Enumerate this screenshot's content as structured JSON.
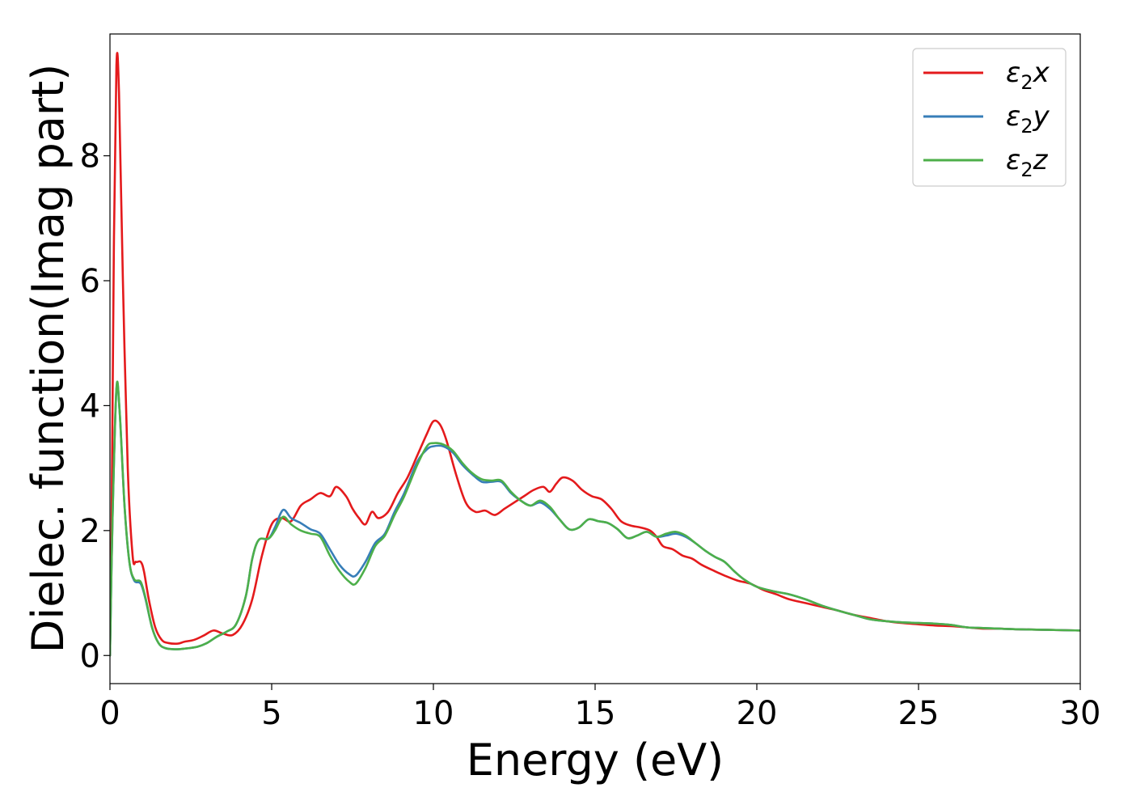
{
  "chart_data": {
    "type": "line",
    "xlabel": "Energy (eV)",
    "ylabel": "Dielec. function(Imag part)",
    "xlim": [
      0,
      30
    ],
    "ylim": [
      -0.45,
      9.95
    ],
    "xticks": [
      0,
      5,
      10,
      15,
      20,
      25,
      30
    ],
    "yticks": [
      0,
      2,
      4,
      6,
      8
    ],
    "grid": false,
    "legend_position": "top-right",
    "series": [
      {
        "name": "ε2x",
        "legend": {
          "base": "ε",
          "sub": "2",
          "tail": "x"
        },
        "color": "#e41a1c",
        "points": [
          [
            0,
            0
          ],
          [
            0.05,
            2.0
          ],
          [
            0.12,
            6.5
          ],
          [
            0.2,
            9.45
          ],
          [
            0.28,
            9.0
          ],
          [
            0.4,
            6.0
          ],
          [
            0.55,
            3.0
          ],
          [
            0.7,
            1.6
          ],
          [
            0.8,
            1.5
          ],
          [
            0.95,
            1.5
          ],
          [
            1.05,
            1.35
          ],
          [
            1.2,
            0.9
          ],
          [
            1.4,
            0.45
          ],
          [
            1.6,
            0.25
          ],
          [
            1.8,
            0.2
          ],
          [
            2.1,
            0.19
          ],
          [
            2.3,
            0.22
          ],
          [
            2.6,
            0.25
          ],
          [
            2.9,
            0.32
          ],
          [
            3.2,
            0.4
          ],
          [
            3.5,
            0.35
          ],
          [
            3.8,
            0.33
          ],
          [
            4.1,
            0.5
          ],
          [
            4.4,
            0.9
          ],
          [
            4.7,
            1.6
          ],
          [
            5.0,
            2.1
          ],
          [
            5.3,
            2.2
          ],
          [
            5.6,
            2.15
          ],
          [
            5.9,
            2.4
          ],
          [
            6.2,
            2.5
          ],
          [
            6.5,
            2.6
          ],
          [
            6.8,
            2.55
          ],
          [
            7.0,
            2.7
          ],
          [
            7.3,
            2.55
          ],
          [
            7.5,
            2.35
          ],
          [
            7.7,
            2.2
          ],
          [
            7.9,
            2.1
          ],
          [
            8.1,
            2.3
          ],
          [
            8.3,
            2.2
          ],
          [
            8.6,
            2.3
          ],
          [
            8.9,
            2.6
          ],
          [
            9.2,
            2.85
          ],
          [
            9.5,
            3.2
          ],
          [
            9.8,
            3.55
          ],
          [
            10.0,
            3.75
          ],
          [
            10.2,
            3.7
          ],
          [
            10.4,
            3.45
          ],
          [
            10.7,
            2.9
          ],
          [
            11.0,
            2.45
          ],
          [
            11.3,
            2.3
          ],
          [
            11.6,
            2.32
          ],
          [
            11.9,
            2.25
          ],
          [
            12.2,
            2.35
          ],
          [
            12.5,
            2.45
          ],
          [
            12.8,
            2.55
          ],
          [
            13.1,
            2.65
          ],
          [
            13.4,
            2.7
          ],
          [
            13.6,
            2.62
          ],
          [
            13.8,
            2.75
          ],
          [
            14.0,
            2.85
          ],
          [
            14.3,
            2.8
          ],
          [
            14.6,
            2.65
          ],
          [
            14.9,
            2.55
          ],
          [
            15.2,
            2.5
          ],
          [
            15.5,
            2.35
          ],
          [
            15.8,
            2.15
          ],
          [
            16.1,
            2.08
          ],
          [
            16.4,
            2.05
          ],
          [
            16.7,
            2.0
          ],
          [
            16.9,
            1.9
          ],
          [
            17.1,
            1.75
          ],
          [
            17.4,
            1.7
          ],
          [
            17.7,
            1.6
          ],
          [
            18.0,
            1.55
          ],
          [
            18.3,
            1.45
          ],
          [
            18.7,
            1.35
          ],
          [
            19.0,
            1.28
          ],
          [
            19.4,
            1.2
          ],
          [
            19.8,
            1.15
          ],
          [
            20.2,
            1.05
          ],
          [
            20.6,
            0.98
          ],
          [
            21.0,
            0.9
          ],
          [
            21.5,
            0.84
          ],
          [
            22.0,
            0.78
          ],
          [
            22.5,
            0.72
          ],
          [
            23.0,
            0.65
          ],
          [
            23.5,
            0.6
          ],
          [
            24.0,
            0.55
          ],
          [
            24.5,
            0.52
          ],
          [
            25.0,
            0.5
          ],
          [
            25.5,
            0.48
          ],
          [
            26.0,
            0.47
          ],
          [
            26.5,
            0.45
          ],
          [
            27.0,
            0.43
          ],
          [
            27.5,
            0.43
          ],
          [
            28.0,
            0.42
          ],
          [
            29.0,
            0.41
          ],
          [
            30.0,
            0.4
          ]
        ]
      },
      {
        "name": "ε2y",
        "legend": {
          "base": "ε",
          "sub": "2",
          "tail": "y"
        },
        "color": "#377eb8",
        "points": [
          [
            0,
            0
          ],
          [
            0.08,
            2.2
          ],
          [
            0.2,
            4.25
          ],
          [
            0.3,
            3.9
          ],
          [
            0.45,
            2.4
          ],
          [
            0.6,
            1.5
          ],
          [
            0.75,
            1.2
          ],
          [
            0.95,
            1.15
          ],
          [
            1.1,
            0.9
          ],
          [
            1.3,
            0.45
          ],
          [
            1.5,
            0.2
          ],
          [
            1.7,
            0.12
          ],
          [
            2.0,
            0.1
          ],
          [
            2.3,
            0.11
          ],
          [
            2.7,
            0.14
          ],
          [
            3.0,
            0.2
          ],
          [
            3.3,
            0.3
          ],
          [
            3.6,
            0.38
          ],
          [
            3.9,
            0.5
          ],
          [
            4.2,
            0.95
          ],
          [
            4.4,
            1.55
          ],
          [
            4.6,
            1.85
          ],
          [
            4.9,
            1.87
          ],
          [
            5.1,
            2.05
          ],
          [
            5.35,
            2.33
          ],
          [
            5.6,
            2.2
          ],
          [
            5.9,
            2.12
          ],
          [
            6.2,
            2.02
          ],
          [
            6.5,
            1.95
          ],
          [
            6.8,
            1.7
          ],
          [
            7.1,
            1.45
          ],
          [
            7.4,
            1.3
          ],
          [
            7.6,
            1.28
          ],
          [
            7.9,
            1.5
          ],
          [
            8.2,
            1.8
          ],
          [
            8.5,
            1.95
          ],
          [
            8.8,
            2.3
          ],
          [
            9.1,
            2.6
          ],
          [
            9.5,
            3.1
          ],
          [
            9.8,
            3.3
          ],
          [
            10.0,
            3.35
          ],
          [
            10.3,
            3.35
          ],
          [
            10.6,
            3.25
          ],
          [
            10.9,
            3.05
          ],
          [
            11.2,
            2.9
          ],
          [
            11.5,
            2.78
          ],
          [
            11.8,
            2.78
          ],
          [
            12.1,
            2.78
          ],
          [
            12.4,
            2.6
          ],
          [
            12.7,
            2.48
          ],
          [
            13.0,
            2.4
          ],
          [
            13.3,
            2.45
          ],
          [
            13.6,
            2.35
          ],
          [
            13.9,
            2.18
          ],
          [
            14.2,
            2.02
          ],
          [
            14.5,
            2.05
          ],
          [
            14.8,
            2.18
          ],
          [
            15.1,
            2.15
          ],
          [
            15.4,
            2.12
          ],
          [
            15.7,
            2.02
          ],
          [
            16.0,
            1.88
          ],
          [
            16.3,
            1.92
          ],
          [
            16.6,
            1.98
          ],
          [
            16.9,
            1.9
          ],
          [
            17.2,
            1.92
          ],
          [
            17.5,
            1.95
          ],
          [
            17.8,
            1.9
          ],
          [
            18.1,
            1.8
          ],
          [
            18.4,
            1.68
          ],
          [
            18.7,
            1.58
          ],
          [
            19.0,
            1.5
          ],
          [
            19.3,
            1.35
          ],
          [
            19.6,
            1.22
          ],
          [
            20.0,
            1.1
          ],
          [
            20.5,
            1.03
          ],
          [
            21.0,
            0.98
          ],
          [
            21.5,
            0.9
          ],
          [
            22.0,
            0.8
          ],
          [
            22.5,
            0.72
          ],
          [
            23.0,
            0.65
          ],
          [
            23.5,
            0.58
          ],
          [
            24.0,
            0.55
          ],
          [
            24.5,
            0.53
          ],
          [
            25.0,
            0.52
          ],
          [
            25.5,
            0.51
          ],
          [
            26.0,
            0.49
          ],
          [
            26.5,
            0.45
          ],
          [
            27.0,
            0.44
          ],
          [
            27.5,
            0.43
          ],
          [
            28.0,
            0.42
          ],
          [
            29.0,
            0.41
          ],
          [
            30.0,
            0.4
          ]
        ]
      },
      {
        "name": "ε2z",
        "legend": {
          "base": "ε",
          "sub": "2",
          "tail": "z"
        },
        "color": "#4daf4a",
        "points": [
          [
            0,
            0
          ],
          [
            0.08,
            2.2
          ],
          [
            0.2,
            4.28
          ],
          [
            0.3,
            3.9
          ],
          [
            0.45,
            2.4
          ],
          [
            0.6,
            1.5
          ],
          [
            0.75,
            1.22
          ],
          [
            0.95,
            1.18
          ],
          [
            1.1,
            0.92
          ],
          [
            1.3,
            0.45
          ],
          [
            1.5,
            0.2
          ],
          [
            1.7,
            0.12
          ],
          [
            2.0,
            0.1
          ],
          [
            2.3,
            0.11
          ],
          [
            2.7,
            0.14
          ],
          [
            3.0,
            0.2
          ],
          [
            3.3,
            0.3
          ],
          [
            3.6,
            0.38
          ],
          [
            3.9,
            0.5
          ],
          [
            4.2,
            0.95
          ],
          [
            4.4,
            1.55
          ],
          [
            4.6,
            1.85
          ],
          [
            4.9,
            1.87
          ],
          [
            5.1,
            2.0
          ],
          [
            5.35,
            2.22
          ],
          [
            5.6,
            2.1
          ],
          [
            5.9,
            2.0
          ],
          [
            6.2,
            1.95
          ],
          [
            6.5,
            1.9
          ],
          [
            6.8,
            1.6
          ],
          [
            7.1,
            1.35
          ],
          [
            7.4,
            1.18
          ],
          [
            7.6,
            1.15
          ],
          [
            7.9,
            1.4
          ],
          [
            8.2,
            1.75
          ],
          [
            8.5,
            1.92
          ],
          [
            8.8,
            2.25
          ],
          [
            9.1,
            2.55
          ],
          [
            9.5,
            3.05
          ],
          [
            9.8,
            3.35
          ],
          [
            10.0,
            3.4
          ],
          [
            10.3,
            3.38
          ],
          [
            10.6,
            3.28
          ],
          [
            10.9,
            3.08
          ],
          [
            11.2,
            2.92
          ],
          [
            11.5,
            2.82
          ],
          [
            11.8,
            2.8
          ],
          [
            12.1,
            2.8
          ],
          [
            12.4,
            2.62
          ],
          [
            12.7,
            2.48
          ],
          [
            13.0,
            2.4
          ],
          [
            13.3,
            2.48
          ],
          [
            13.6,
            2.38
          ],
          [
            13.9,
            2.18
          ],
          [
            14.2,
            2.02
          ],
          [
            14.5,
            2.05
          ],
          [
            14.8,
            2.18
          ],
          [
            15.1,
            2.15
          ],
          [
            15.4,
            2.12
          ],
          [
            15.7,
            2.02
          ],
          [
            16.0,
            1.88
          ],
          [
            16.3,
            1.92
          ],
          [
            16.6,
            1.98
          ],
          [
            16.9,
            1.9
          ],
          [
            17.2,
            1.95
          ],
          [
            17.5,
            1.98
          ],
          [
            17.8,
            1.92
          ],
          [
            18.1,
            1.8
          ],
          [
            18.4,
            1.68
          ],
          [
            18.7,
            1.58
          ],
          [
            19.0,
            1.5
          ],
          [
            19.3,
            1.35
          ],
          [
            19.6,
            1.22
          ],
          [
            20.0,
            1.1
          ],
          [
            20.5,
            1.03
          ],
          [
            21.0,
            0.98
          ],
          [
            21.5,
            0.9
          ],
          [
            22.0,
            0.8
          ],
          [
            22.5,
            0.72
          ],
          [
            23.0,
            0.65
          ],
          [
            23.5,
            0.58
          ],
          [
            24.0,
            0.55
          ],
          [
            24.5,
            0.53
          ],
          [
            25.0,
            0.52
          ],
          [
            25.5,
            0.51
          ],
          [
            26.0,
            0.49
          ],
          [
            26.5,
            0.45
          ],
          [
            27.0,
            0.44
          ],
          [
            27.5,
            0.43
          ],
          [
            28.0,
            0.42
          ],
          [
            29.0,
            0.41
          ],
          [
            30.0,
            0.4
          ]
        ]
      }
    ]
  }
}
